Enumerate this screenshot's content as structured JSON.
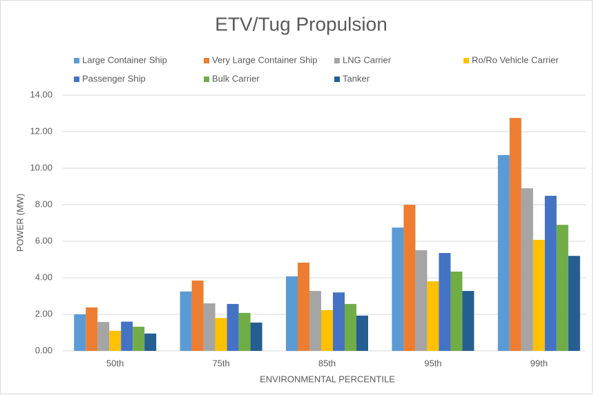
{
  "chart_data": {
    "type": "bar",
    "title": "ETV/Tug Propulsion",
    "x_label": "ENVIRONMENTAL PERCENTILE",
    "y_label": "POWER (MW)",
    "categories": [
      "50th",
      "75th",
      "85th",
      "95th",
      "99th"
    ],
    "series": [
      {
        "name": "Large Container Ship",
        "color": "#5b9bd5",
        "values": [
          2.0,
          3.25,
          4.08,
          6.75,
          10.72
        ]
      },
      {
        "name": "Very Large Container Ship",
        "color": "#ed7d31",
        "values": [
          2.38,
          3.85,
          4.83,
          8.0,
          12.75
        ]
      },
      {
        "name": "LNG Carrier",
        "color": "#a5a5a5",
        "values": [
          1.58,
          2.6,
          3.28,
          5.51,
          8.9
        ]
      },
      {
        "name": "Ro/Ro Vehicle Carrier",
        "color": "#ffc000",
        "values": [
          1.1,
          1.8,
          2.23,
          3.81,
          6.08
        ]
      },
      {
        "name": "Passenger Ship",
        "color": "#4472c4",
        "values": [
          1.6,
          2.57,
          3.2,
          5.36,
          8.49
        ]
      },
      {
        "name": "Bulk Carrier",
        "color": "#70ad47",
        "values": [
          1.32,
          2.08,
          2.57,
          4.34,
          6.9
        ]
      },
      {
        "name": "Tanker",
        "color": "#255e91",
        "values": [
          0.95,
          1.55,
          1.93,
          3.28,
          5.2
        ]
      }
    ],
    "ylim": [
      0,
      14
    ],
    "yticks": [
      {
        "value": 0,
        "label": "0.00"
      },
      {
        "value": 2,
        "label": "2.00"
      },
      {
        "value": 4,
        "label": "4.00"
      },
      {
        "value": 6,
        "label": "6.00"
      },
      {
        "value": 8,
        "label": "8.00"
      },
      {
        "value": 10,
        "label": "10.00"
      },
      {
        "value": 12,
        "label": "12.00"
      },
      {
        "value": 14,
        "label": "14.00"
      }
    ],
    "grid": true
  }
}
